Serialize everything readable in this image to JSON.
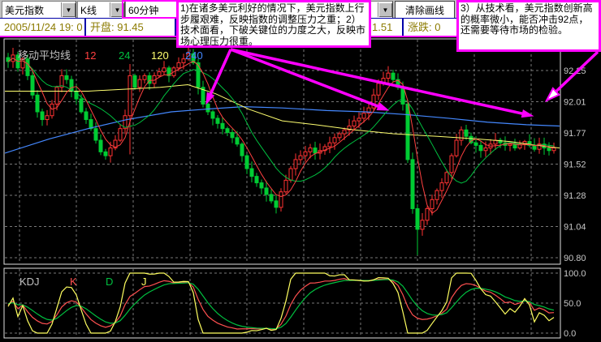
{
  "toolbar": {
    "row1": {
      "symbol": "美元指数",
      "chart_type": "K线",
      "period": "60分钟",
      "clear_button": "清除画线",
      "dropdown_glyph": "▼"
    },
    "row2": {
      "datetime": "2005/11/24 19: 0",
      "open": "开盘: 91.45",
      "hidden_field_fragment_left": "最",
      "hidden_field_fragment_right": "1.51",
      "change": "涨跌: 0"
    }
  },
  "annotations": {
    "note1": "1)在诸多美元利好的情况下，美元指数上行步履艰难，反映指数的调整压力之重；2）技术面看，下破关键位的力度之大，反映市场心理压力很重。",
    "note3": "3）从技术看，美元指数创新高的概率微小，能否冲击92点，还需要等待市场的检验。",
    "arrow_color": "#ff00ff",
    "arrows": [
      {
        "from": [
          284,
          61
        ],
        "to": [
          254,
          128
        ],
        "open": false
      },
      {
        "from": [
          284,
          61
        ],
        "to": [
          478,
          136
        ],
        "open": false
      },
      {
        "from": [
          284,
          61
        ],
        "to": [
          656,
          143
        ],
        "open": false
      },
      {
        "from": [
          736,
          64
        ],
        "to": [
          673,
          124
        ],
        "open": true
      }
    ]
  },
  "chart_data": {
    "type": "candlestick",
    "instrument": "美元指数",
    "timeframe": "60分钟",
    "overlay": {
      "label": "移动平均线",
      "series": [
        {
          "name": "12",
          "color": "#ff4040"
        },
        {
          "name": "24",
          "color": "#00c040"
        },
        {
          "name": "120",
          "color": "#ffff70"
        },
        {
          "name": "240",
          "color": "#4488ff"
        }
      ]
    },
    "y_axis_labels": [
      "92.25",
      "92.01",
      "91.77",
      "91.52",
      "91.28",
      "91.04",
      "90.80"
    ],
    "y_axis_values": [
      92.25,
      92.01,
      91.77,
      91.52,
      91.28,
      91.04,
      90.8
    ],
    "colors": {
      "up": "#ff3232",
      "down": "#00cc33",
      "grid": "#787878",
      "border": "#e0e0e0",
      "axis_text": "#c8c8c8"
    },
    "closes": [
      92.32,
      92.37,
      92.27,
      92.34,
      92.21,
      92.06,
      91.93,
      91.87,
      91.9,
      91.99,
      92.12,
      92.21,
      92.18,
      92.09,
      92.03,
      91.93,
      91.87,
      91.8,
      91.71,
      91.62,
      91.59,
      91.65,
      91.71,
      91.8,
      91.9,
      92.21,
      92.12,
      92.18,
      92.21,
      92.15,
      92.21,
      92.24,
      92.27,
      92.21,
      92.27,
      92.31,
      92.34,
      92.38,
      92.31,
      92.12,
      91.99,
      91.93,
      91.88,
      91.84,
      91.8,
      91.77,
      91.73,
      91.68,
      91.59,
      91.49,
      91.43,
      91.38,
      91.34,
      91.29,
      91.24,
      91.19,
      91.31,
      91.4,
      91.49,
      91.56,
      91.59,
      91.62,
      91.65,
      91.61,
      91.63,
      91.66,
      91.69,
      91.73,
      91.76,
      91.79,
      91.82,
      91.86,
      91.88,
      91.92,
      91.96,
      92.06,
      92.15,
      92.19,
      92.23,
      92.18,
      92.12,
      91.99,
      91.56,
      91.18,
      91.02,
      91.09,
      91.18,
      91.25,
      91.32,
      91.38,
      91.46,
      91.59,
      91.71,
      91.79,
      91.74,
      91.69,
      91.67,
      91.63,
      91.65,
      91.68,
      91.71,
      91.69,
      91.67,
      91.68,
      91.65,
      91.68,
      91.7,
      91.67,
      91.64,
      91.68,
      91.65,
      91.63,
      91.65
    ],
    "wick_overrides": {
      "25": {
        "low": 91.6,
        "high": 92.3
      },
      "37": {
        "high": 92.43
      },
      "84": {
        "low": 90.82
      }
    },
    "ma120": [
      [
        0,
        92.09
      ],
      [
        0.15,
        92.09
      ],
      [
        0.28,
        92.12
      ],
      [
        0.33,
        92.14
      ],
      [
        0.38,
        92.07
      ],
      [
        0.44,
        91.95
      ],
      [
        0.5,
        91.86
      ],
      [
        0.56,
        91.83
      ],
      [
        0.63,
        91.79
      ],
      [
        0.7,
        91.76
      ],
      [
        0.78,
        91.74
      ],
      [
        0.85,
        91.72
      ],
      [
        0.91,
        91.7
      ],
      [
        0.96,
        91.67
      ],
      [
        1,
        91.65
      ]
    ],
    "ma240": [
      [
        0,
        91.61
      ],
      [
        0.08,
        91.72
      ],
      [
        0.15,
        91.8
      ],
      [
        0.22,
        91.87
      ],
      [
        0.3,
        91.93
      ],
      [
        0.36,
        91.95
      ],
      [
        0.43,
        91.97
      ],
      [
        0.5,
        91.96
      ],
      [
        0.58,
        91.94
      ],
      [
        0.65,
        91.93
      ],
      [
        0.72,
        91.91
      ],
      [
        0.8,
        91.88
      ],
      [
        0.87,
        91.85
      ],
      [
        0.94,
        91.83
      ],
      [
        1,
        91.82
      ]
    ],
    "sub_chart": {
      "label": "KDJ",
      "period": 9,
      "series": [
        {
          "name": "K",
          "color": "#ff5050"
        },
        {
          "name": "D",
          "color": "#00c040"
        },
        {
          "name": "J",
          "color": "#ffff60"
        }
      ],
      "y_axis_labels": [
        "100.0",
        "50.0",
        "0.0"
      ],
      "y_axis_values": [
        100,
        50,
        0
      ]
    }
  }
}
